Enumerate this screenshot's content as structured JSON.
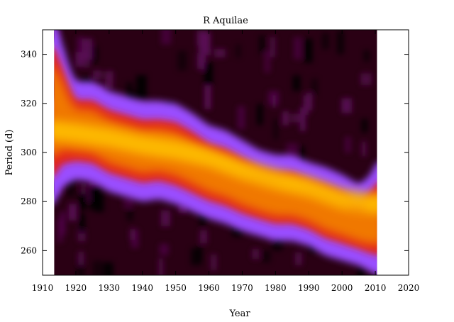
{
  "chart_data": {
    "type": "heatmap",
    "title": "R Aquilae",
    "xlabel": "Year",
    "ylabel": "Period (d)",
    "xlim": [
      1910,
      2020
    ],
    "ylim": [
      250,
      350
    ],
    "data_x_range": [
      1913.5,
      2010.5
    ],
    "x_ticks": [
      1910,
      1920,
      1930,
      1940,
      1950,
      1960,
      1970,
      1980,
      1990,
      2000,
      2010,
      2020
    ],
    "y_ticks": [
      260,
      280,
      300,
      320,
      340
    ],
    "colormap": [
      "#000000",
      "#2a0014",
      "#5a0a56",
      "#9a4dff",
      "#e0231c",
      "#f07800",
      "#ffc400"
    ],
    "ridge": {
      "year": [
        1913.5,
        1920,
        1930,
        1940,
        1950,
        1960,
        1970,
        1980,
        1990,
        2000,
        2005,
        2010.5
      ],
      "period": [
        309,
        308,
        306,
        303,
        301,
        298,
        293,
        289,
        286,
        281,
        280,
        279
      ]
    },
    "upper_edge": {
      "year": [
        1913.5,
        1916,
        1918,
        1920,
        1925,
        1930,
        1935,
        1940,
        1945,
        1950,
        1955,
        1960,
        1965,
        1970,
        1975,
        1980,
        1985,
        1990,
        1995,
        2000,
        2005,
        2008,
        2010.5
      ],
      "period": [
        350,
        340,
        331,
        325,
        325,
        321,
        319,
        317,
        317,
        316,
        312,
        307,
        305,
        301,
        297,
        295,
        295,
        292,
        290,
        287,
        283,
        286,
        292
      ]
    },
    "lower_edge": {
      "year": [
        1913.5,
        1916,
        1920,
        1925,
        1930,
        1935,
        1940,
        1945,
        1950,
        1955,
        1960,
        1965,
        1970,
        1975,
        1980,
        1985,
        1990,
        1995,
        2000,
        2005,
        2010.5
      ],
      "period": [
        283,
        290,
        293,
        292,
        288,
        286,
        284,
        285,
        283,
        280,
        277,
        275,
        272,
        270,
        268,
        268,
        266,
        262,
        260,
        258,
        254
      ]
    }
  }
}
